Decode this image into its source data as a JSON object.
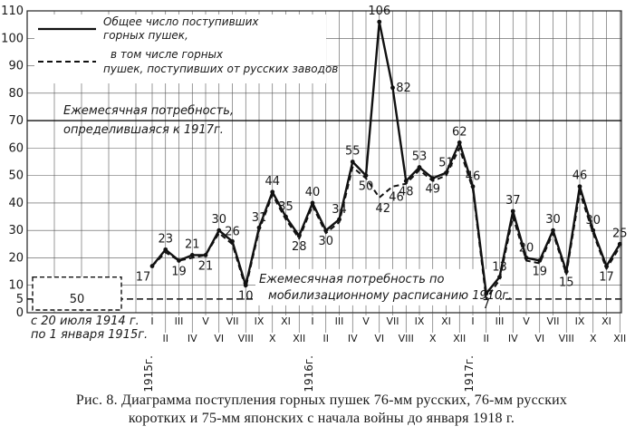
{
  "caption": {
    "line1": "Рис. 8. Диаграмма поступления горных пушек 76-мм русских, 76-мм русских",
    "line2": "коротких и 75-мм японских с начала войны до января 1918 г."
  },
  "chart_data": {
    "type": "line",
    "ylim": [
      0,
      110
    ],
    "yticks": [
      0,
      5,
      10,
      20,
      30,
      40,
      50,
      60,
      70,
      80,
      90,
      100,
      110
    ],
    "month_labels": [
      "I",
      "II",
      "III",
      "IV",
      "V",
      "VI",
      "VII",
      "VIII",
      "IX",
      "X",
      "XI",
      "XII",
      "I",
      "II",
      "III",
      "IV",
      "V",
      "VI",
      "VII",
      "VIII",
      "IX",
      "X",
      "XI",
      "XII",
      "I",
      "II",
      "III",
      "IV",
      "V",
      "VI",
      "VII",
      "VIII",
      "IX",
      "X",
      "XI",
      "XII"
    ],
    "year_labels": [
      "1915г.",
      "1916г.",
      "1917г."
    ],
    "pre_period": {
      "label_line1": "с 20 июля 1914 г.",
      "label_line2": "по 1 января 1915г.",
      "value": 50
    },
    "series": [
      {
        "name": "Общее число поступивших горных пушек,",
        "style": "solid",
        "values": [
          17,
          23,
          19,
          21,
          21,
          30,
          26,
          10,
          31,
          44,
          35,
          28,
          40,
          30,
          34,
          55,
          50,
          106,
          82,
          48,
          53,
          49,
          51,
          62,
          46,
          7,
          13,
          37,
          20,
          19,
          30,
          15,
          46,
          30,
          17,
          25
        ]
      },
      {
        "name": "в том числе горных пушек, поступивших от русских заводов",
        "style": "dashed",
        "values": [
          17,
          22,
          19,
          20,
          21,
          29,
          25,
          9,
          30,
          43,
          34,
          27,
          39,
          29,
          33,
          53,
          49,
          42,
          46,
          47,
          52,
          48,
          50,
          60,
          45,
          5,
          12,
          35,
          19,
          18,
          29,
          14,
          44,
          29,
          16,
          24
        ]
      }
    ],
    "point_labels": [
      {
        "i": 0,
        "t": "17"
      },
      {
        "i": 1,
        "t": "23"
      },
      {
        "i": 2,
        "t": "19"
      },
      {
        "i": 3,
        "t": "21"
      },
      {
        "i": 4,
        "t": "21"
      },
      {
        "i": 5,
        "t": "30"
      },
      {
        "i": 6,
        "t": "26"
      },
      {
        "i": 7,
        "t": "10"
      },
      {
        "i": 8,
        "t": "31"
      },
      {
        "i": 9,
        "t": "44"
      },
      {
        "i": 10,
        "t": "35"
      },
      {
        "i": 11,
        "t": "28"
      },
      {
        "i": 12,
        "t": "40"
      },
      {
        "i": 13,
        "t": "30"
      },
      {
        "i": 14,
        "t": "34"
      },
      {
        "i": 15,
        "t": "55"
      },
      {
        "i": 16,
        "t": "50"
      },
      {
        "i": 17,
        "t": "106"
      },
      {
        "i": 18,
        "t": "82"
      },
      {
        "i": 19,
        "t": "48"
      },
      {
        "i": 20,
        "t": "53"
      },
      {
        "i": 21,
        "t": "49"
      },
      {
        "i": 22,
        "t": "51"
      },
      {
        "i": 23,
        "t": "62"
      },
      {
        "i": 24,
        "t": "46"
      },
      {
        "i": 25,
        "t": "7"
      },
      {
        "i": 26,
        "t": "13"
      },
      {
        "i": 27,
        "t": "37"
      },
      {
        "i": 28,
        "t": "20"
      },
      {
        "i": 29,
        "t": "19"
      },
      {
        "i": 30,
        "t": "30"
      },
      {
        "i": 31,
        "t": "15"
      },
      {
        "i": 32,
        "t": "46"
      },
      {
        "i": 33,
        "t": "30"
      },
      {
        "i": 34,
        "t": "17"
      },
      {
        "i": 35,
        "t": "25"
      }
    ],
    "extra_labels": [
      {
        "t": "42",
        "i": 17,
        "v": 42
      },
      {
        "t": "46",
        "i": 18,
        "v": 46
      }
    ],
    "reference_lines": [
      {
        "value": 70,
        "style": "solid",
        "label_line1": "Ежемесячная потребность,",
        "label_line2": "определившаяся к 1917г."
      },
      {
        "value": 5,
        "style": "dashed",
        "label_line1": "Ежемесячная потребность по",
        "label_line2": "мобилизационному расписанию 1910г."
      }
    ],
    "grid": true
  }
}
